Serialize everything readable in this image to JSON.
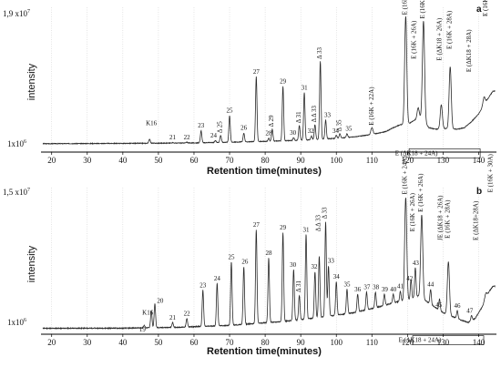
{
  "chart_data": [
    {
      "type": "line",
      "panel": "a",
      "xlabel": "Retention time(minutes)",
      "ylabel": "intensity",
      "xlim": [
        17,
        145
      ],
      "ylim": [
        1000000,
        19000000
      ],
      "xticks": [
        "20",
        "30",
        "40",
        "50",
        "60",
        "70",
        "80",
        "90",
        "100",
        "110",
        "120",
        "130",
        "140"
      ],
      "yticks": [
        "1x10^6",
        "1,9x10^7"
      ],
      "baseline": [
        [
          17,
          1.1
        ],
        [
          40,
          1.14
        ],
        [
          60,
          1.2
        ],
        [
          70,
          1.3
        ],
        [
          80,
          1.4
        ],
        [
          90,
          1.55
        ],
        [
          100,
          1.8
        ],
        [
          105,
          2.0
        ],
        [
          110,
          2.3
        ],
        [
          114,
          2.7
        ],
        [
          116,
          3.2
        ],
        [
          118,
          3.6
        ],
        [
          120,
          3.6
        ],
        [
          122,
          4.2
        ],
        [
          124,
          4.6
        ],
        [
          126,
          3.2
        ],
        [
          128,
          3.0
        ],
        [
          130,
          3.1
        ],
        [
          134,
          3.0
        ],
        [
          136,
          3.2
        ],
        [
          138,
          4.0
        ],
        [
          140,
          5.0
        ],
        [
          142,
          6.6
        ],
        [
          144,
          8.0
        ]
      ],
      "peaks": [
        {
          "x": 47.5,
          "y": 1.7,
          "w": 0.2,
          "label": "K16"
        },
        {
          "x": 54,
          "y": 1.25,
          "w": 0.2,
          "label": "21"
        },
        {
          "x": 58,
          "y": 1.3,
          "w": 0.2,
          "label": "22"
        },
        {
          "x": 62,
          "y": 2.8,
          "w": 0.2,
          "label": "23"
        },
        {
          "x": 66,
          "y": 1.5,
          "w": 0.2,
          "label": "24"
        },
        {
          "x": 67.5,
          "y": 2.2,
          "w": 0.2,
          "label": "Δ 25"
        },
        {
          "x": 70,
          "y": 4.8,
          "w": 0.2,
          "label": "25"
        },
        {
          "x": 74,
          "y": 2.5,
          "w": 0.2,
          "label": "26"
        },
        {
          "x": 77.5,
          "y": 9.9,
          "w": 0.2,
          "label": "27"
        },
        {
          "x": 81,
          "y": 1.8,
          "w": 0.2,
          "label": "28"
        },
        {
          "x": 82,
          "y": 3.0,
          "w": 0.2,
          "label": "Δ 29"
        },
        {
          "x": 85,
          "y": 8.6,
          "w": 0.2,
          "label": "29"
        },
        {
          "x": 88,
          "y": 1.9,
          "w": 0.2,
          "label": "30"
        },
        {
          "x": 89.6,
          "y": 3.5,
          "w": 0.2,
          "label": "Δ 31"
        },
        {
          "x": 91,
          "y": 7.8,
          "w": 0.2,
          "label": "31"
        },
        {
          "x": 93,
          "y": 2.1,
          "w": 0.2,
          "label": "32"
        },
        {
          "x": 94,
          "y": 3.6,
          "w": 0.2,
          "label": "Δ Δ 33"
        },
        {
          "x": 95.5,
          "y": 11.9,
          "w": 0.2,
          "label": "Δ 33"
        },
        {
          "x": 97,
          "y": 4.2,
          "w": 0.2,
          "label": "33"
        },
        {
          "x": 100,
          "y": 2.2,
          "w": 0.2,
          "label": "34"
        },
        {
          "x": 101,
          "y": 2.4,
          "w": 0.2,
          "label": "Δ 35"
        },
        {
          "x": 103,
          "y": 2.4,
          "w": 0.2,
          "label": "35"
        },
        {
          "x": 110,
          "y": 3.2,
          "w": 0.3,
          "label": "E (16K + 22A)"
        },
        {
          "x": 119.5,
          "y": 17.8,
          "w": 0.3,
          "label": "E (16K + 24A)"
        },
        {
          "x": 123,
          "y": 5.8,
          "w": 0.3,
          "label": "E (ΔK18 + 24A)"
        },
        {
          "x": 124.5,
          "y": 17.2,
          "w": 0.3,
          "label": "E (16K + 26A)"
        },
        {
          "x": 129.5,
          "y": 6.2,
          "w": 0.3,
          "label": "E (ΔK18 + 26A)"
        },
        {
          "x": 132,
          "y": 11.2,
          "w": 0.3,
          "label": "E (16K + 28A)"
        },
        {
          "x": 141.5,
          "y": 7.2,
          "w": 0.3,
          "label": "E (ΔK18 + 28A)"
        }
      ],
      "labels": [
        {
          "text": "K16",
          "x": 48,
          "y": 3.5,
          "rot": 0
        },
        {
          "text": "21",
          "x": 54,
          "y": 1.7,
          "rot": 0
        },
        {
          "text": "22",
          "x": 58,
          "y": 1.7,
          "rot": 0
        },
        {
          "text": "23",
          "x": 62,
          "y": 3.2,
          "rot": 0
        },
        {
          "text": "24",
          "x": 65.5,
          "y": 1.9,
          "rot": 0
        },
        {
          "text": "Δ 25",
          "x": 67.8,
          "y": 2.5,
          "rot": -90
        },
        {
          "text": "25",
          "x": 70,
          "y": 5.2,
          "rot": 0
        },
        {
          "text": "26",
          "x": 74,
          "y": 2.9,
          "rot": 0
        },
        {
          "text": "27",
          "x": 77.5,
          "y": 10.3,
          "rot": 0
        },
        {
          "text": "28",
          "x": 81,
          "y": 2.2,
          "rot": 0
        },
        {
          "text": "Δ 29",
          "x": 82.3,
          "y": 3.3,
          "rot": -90
        },
        {
          "text": "29",
          "x": 85,
          "y": 9.0,
          "rot": 0
        },
        {
          "text": "30",
          "x": 87.8,
          "y": 2.3,
          "rot": 0
        },
        {
          "text": "Δ 31",
          "x": 89.9,
          "y": 3.8,
          "rot": -90
        },
        {
          "text": "31",
          "x": 91,
          "y": 8.2,
          "rot": 0
        },
        {
          "text": "32",
          "x": 92.8,
          "y": 2.5,
          "rot": 0
        },
        {
          "text": "Δ Δ 33",
          "x": 94.3,
          "y": 3.9,
          "rot": -90
        },
        {
          "text": "Δ 33",
          "x": 95.8,
          "y": 12.2,
          "rot": -90
        },
        {
          "text": "33",
          "x": 97.5,
          "y": 4.6,
          "rot": 0
        },
        {
          "text": "34",
          "x": 99.8,
          "y": 2.5,
          "rot": 0
        },
        {
          "text": "Δ 35",
          "x": 101.3,
          "y": 2.7,
          "rot": -90
        },
        {
          "text": "35",
          "x": 103.5,
          "y": 2.8,
          "rot": 0
        },
        {
          "text": "E (16K + 22A)",
          "x": 110.5,
          "y": 3.5,
          "rot": -90
        },
        {
          "text": "E (16K + 24A)",
          "x": 119.8,
          "y": 18.0,
          "rot": -90
        },
        {
          "text": "E (16K + 26A)",
          "x": 122.3,
          "y": 12.2,
          "rot": -90
        },
        {
          "text": "E (16K + 26A)",
          "x": 124.8,
          "y": 17.5,
          "rot": -90
        },
        {
          "text": "E (ΔK18 + 26A)",
          "x": 129.5,
          "y": 12.0,
          "rot": -90
        },
        {
          "text": "E (16K + 28A)",
          "x": 132.3,
          "y": 13.5,
          "rot": -90
        },
        {
          "text": "E (ΔK18 + 28A)",
          "x": 137.8,
          "y": 10.5,
          "rot": -90
        },
        {
          "text": "E (16K + 30A)",
          "x": 142.5,
          "y": 17.8,
          "rot": -90
        },
        {
          "text": "E (ΔK18 + 24A)",
          "x": 122.5,
          "y": -0.4,
          "rot": 0
        }
      ]
    },
    {
      "type": "line",
      "panel": "b",
      "xlabel": "Retention time(minutes)",
      "ylabel": "intensity",
      "xlim": [
        17,
        145
      ],
      "ylim": [
        1000000,
        15000000
      ],
      "xticks": [
        "20",
        "30",
        "40",
        "50",
        "60",
        "70",
        "80",
        "90",
        "100",
        "110",
        "120",
        "130",
        "140"
      ],
      "yticks": [
        "1x10^6",
        "1,5x10^7"
      ],
      "baseline": [
        [
          17,
          0.6
        ],
        [
          40,
          0.62
        ],
        [
          55,
          0.7
        ],
        [
          70,
          0.9
        ],
        [
          85,
          1.3
        ],
        [
          95,
          1.7
        ],
        [
          105,
          2.2
        ],
        [
          112,
          2.8
        ],
        [
          117,
          3.3
        ],
        [
          120,
          3.4
        ],
        [
          123,
          3.9
        ],
        [
          126,
          3.2
        ],
        [
          130,
          2.2
        ],
        [
          134,
          1.6
        ],
        [
          137,
          1.2
        ],
        [
          139,
          1.6
        ],
        [
          141,
          2.8
        ],
        [
          143,
          4.4
        ],
        [
          144,
          4.9
        ]
      ],
      "peaks": [
        {
          "x": 46,
          "y": 0.9,
          "w": 0.2,
          "label": "19"
        },
        {
          "x": 48,
          "y": 2.4,
          "w": 0.2,
          "label": "K16"
        },
        {
          "x": 49,
          "y": 3.1,
          "w": 0.2,
          "label": "20"
        },
        {
          "x": 54,
          "y": 1.2,
          "w": 0.2,
          "label": "21"
        },
        {
          "x": 58,
          "y": 1.6,
          "w": 0.2,
          "label": "22"
        },
        {
          "x": 62.5,
          "y": 4.5,
          "w": 0.2,
          "label": "23"
        },
        {
          "x": 66.5,
          "y": 5.2,
          "w": 0.2,
          "label": "24"
        },
        {
          "x": 70.5,
          "y": 7.4,
          "w": 0.2,
          "label": "25"
        },
        {
          "x": 74,
          "y": 6.9,
          "w": 0.2,
          "label": "26"
        },
        {
          "x": 77.5,
          "y": 10.7,
          "w": 0.2,
          "label": "27"
        },
        {
          "x": 81,
          "y": 7.8,
          "w": 0.2,
          "label": "28"
        },
        {
          "x": 85,
          "y": 10.4,
          "w": 0.2,
          "label": "29"
        },
        {
          "x": 88,
          "y": 6.6,
          "w": 0.2,
          "label": "30"
        },
        {
          "x": 89.6,
          "y": 4.0,
          "w": 0.2,
          "label": "Δ 31"
        },
        {
          "x": 91.5,
          "y": 10.2,
          "w": 0.2,
          "label": "31"
        },
        {
          "x": 94,
          "y": 6.4,
          "w": 0.2,
          "label": "32"
        },
        {
          "x": 95.2,
          "y": 8.0,
          "w": 0.2,
          "label": "Δ Δ 33"
        },
        {
          "x": 97,
          "y": 11.5,
          "w": 0.2,
          "label": "Δ 33"
        },
        {
          "x": 97.8,
          "y": 7.0,
          "w": 0.2,
          "label": "33"
        },
        {
          "x": 100,
          "y": 5.4,
          "w": 0.2,
          "label": "34"
        },
        {
          "x": 103,
          "y": 4.6,
          "w": 0.2,
          "label": "35"
        },
        {
          "x": 106,
          "y": 4.1,
          "w": 0.2,
          "label": "36"
        },
        {
          "x": 108.5,
          "y": 4.3,
          "w": 0.2,
          "label": "37"
        },
        {
          "x": 111,
          "y": 4.3,
          "w": 0.2,
          "label": "38"
        },
        {
          "x": 113.5,
          "y": 4.1,
          "w": 0.2,
          "label": "39"
        },
        {
          "x": 116,
          "y": 4.1,
          "w": 0.2,
          "label": "40"
        },
        {
          "x": 118,
          "y": 4.4,
          "w": 0.2,
          "label": "41"
        },
        {
          "x": 119.5,
          "y": 14.0,
          "w": 0.3,
          "label": "E (16K + 24A)"
        },
        {
          "x": 121,
          "y": 5.6,
          "w": 0.2,
          "label": "42"
        },
        {
          "x": 122.2,
          "y": 6.8,
          "w": 0.2,
          "label": "43"
        },
        {
          "x": 124,
          "y": 12.2,
          "w": 0.3,
          "label": "E (16K + 26A)"
        },
        {
          "x": 126.5,
          "y": 4.6,
          "w": 0.2,
          "label": "44"
        },
        {
          "x": 129,
          "y": 3.6,
          "w": 0.2,
          "label": "45"
        },
        {
          "x": 131.5,
          "y": 7.4,
          "w": 0.3,
          "label": "E (16K + 28A)"
        },
        {
          "x": 134,
          "y": 2.4,
          "w": 0.2,
          "label": "46"
        },
        {
          "x": 138,
          "y": 1.9,
          "w": 0.2,
          "label": "47"
        },
        {
          "x": 142,
          "y": 4.2,
          "w": 0.3,
          "label": "E (ΔK18 + 28A)"
        }
      ],
      "labels": [
        {
          "text": "19",
          "x": 45.5,
          "y": 0.3,
          "rot": 0
        },
        {
          "text": "K16",
          "x": 47,
          "y": 2.0,
          "rot": 0
        },
        {
          "text": "20",
          "x": 50.5,
          "y": 3.2,
          "rot": 0
        },
        {
          "text": "21",
          "x": 54,
          "y": 1.5,
          "rot": 0
        },
        {
          "text": "22",
          "x": 58,
          "y": 1.9,
          "rot": 0
        },
        {
          "text": "23",
          "x": 62.5,
          "y": 4.8,
          "rot": 0
        },
        {
          "text": "24",
          "x": 66.5,
          "y": 5.5,
          "rot": 0
        },
        {
          "text": "25",
          "x": 70.5,
          "y": 7.7,
          "rot": 0
        },
        {
          "text": "26",
          "x": 74.3,
          "y": 7.2,
          "rot": 0
        },
        {
          "text": "27",
          "x": 77.5,
          "y": 11.0,
          "rot": 0
        },
        {
          "text": "28",
          "x": 81,
          "y": 8.1,
          "rot": 0
        },
        {
          "text": "29",
          "x": 85,
          "y": 10.7,
          "rot": 0
        },
        {
          "text": "30",
          "x": 87.8,
          "y": 6.9,
          "rot": 0
        },
        {
          "text": "Δ 31",
          "x": 89.9,
          "y": 4.3,
          "rot": -90
        },
        {
          "text": "31",
          "x": 91.5,
          "y": 10.5,
          "rot": 0
        },
        {
          "text": "32",
          "x": 93.8,
          "y": 6.7,
          "rot": 0
        },
        {
          "text": "Δ Δ 33",
          "x": 95.5,
          "y": 10.5,
          "rot": -90
        },
        {
          "text": "Δ 33",
          "x": 97.3,
          "y": 11.8,
          "rot": -90
        },
        {
          "text": "33",
          "x": 98.5,
          "y": 7.3,
          "rot": 0
        },
        {
          "text": "34",
          "x": 100,
          "y": 5.7,
          "rot": 0
        },
        {
          "text": "35",
          "x": 103,
          "y": 4.9,
          "rot": 0
        },
        {
          "text": "36",
          "x": 106,
          "y": 4.4,
          "rot": 0
        },
        {
          "text": "37",
          "x": 108.6,
          "y": 4.6,
          "rot": 0
        },
        {
          "text": "38",
          "x": 111.1,
          "y": 4.6,
          "rot": 0
        },
        {
          "text": "39",
          "x": 113.6,
          "y": 4.4,
          "rot": 0
        },
        {
          "text": "40",
          "x": 116,
          "y": 4.4,
          "rot": 0
        },
        {
          "text": "41",
          "x": 118,
          "y": 4.7,
          "rot": 0
        },
        {
          "text": "E (16K + 24A)",
          "x": 119.8,
          "y": 14.3,
          "rot": -90
        },
        {
          "text": "42",
          "x": 120.6,
          "y": 5.5,
          "rot": 0
        },
        {
          "text": "43",
          "x": 122.3,
          "y": 7.1,
          "rot": 0
        },
        {
          "text": "E (16K + 26A)",
          "x": 121.9,
          "y": 10.5,
          "rot": -90
        },
        {
          "text": "E (16K + 26A)",
          "x": 124.3,
          "y": 12.5,
          "rot": -90
        },
        {
          "text": "44",
          "x": 126.5,
          "y": 4.9,
          "rot": 0
        },
        {
          "text": "45",
          "x": 128.8,
          "y": 2.8,
          "rot": 0
        },
        {
          "text": "JE (ΔK18 + 26A)",
          "x": 129.8,
          "y": 9.6,
          "rot": -90
        },
        {
          "text": "E (16K + 28A)",
          "x": 131.8,
          "y": 9.8,
          "rot": -90
        },
        {
          "text": "46",
          "x": 134,
          "y": 2.7,
          "rot": 0
        },
        {
          "text": "47",
          "x": 137.5,
          "y": 2.2,
          "rot": 0
        },
        {
          "text": "E (ΔK18+28A)",
          "x": 139.8,
          "y": 9.6,
          "rot": -90
        },
        {
          "text": "E (16K + 30A)",
          "x": 143.8,
          "y": 14.5,
          "rot": -90
        },
        {
          "text": "E (ΔK18 + 24A)",
          "x": 123.5,
          "y": -0.8,
          "rot": 0
        }
      ]
    }
  ],
  "panels": {
    "a": {
      "letter": "a",
      "ylabel": "intensity",
      "xlabel": "Retention time(minutes)",
      "ytop": "1,9 x10",
      "ytop_exp": "7",
      "ybottom": "1x10",
      "ybottom_exp": "6"
    },
    "b": {
      "letter": "b",
      "ylabel": "intensity",
      "xlabel": "Retention time(minutes)",
      "ytop": "1,5 x10",
      "ytop_exp": "7",
      "ybottom": "1x10",
      "ybottom_exp": "6"
    }
  },
  "colors": {
    "trace": "#2a2a2a",
    "axis": "#000000",
    "grid": "#bdbdbd"
  }
}
